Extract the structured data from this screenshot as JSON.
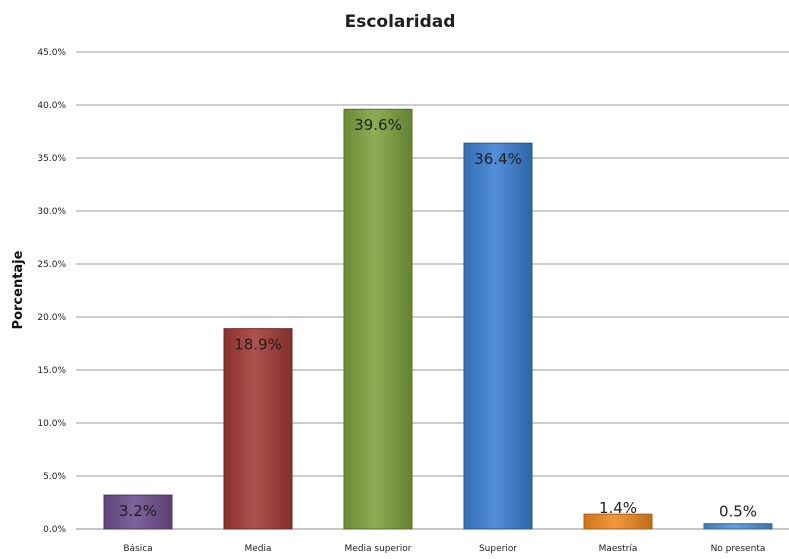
{
  "chart_data": {
    "type": "bar",
    "title": "Escolaridad",
    "xlabel": "",
    "ylabel": "Porcentaje",
    "ylim": [
      0,
      45
    ],
    "ytick_step": 5,
    "ytick_labels": [
      "0.0%",
      "5.0%",
      "10.0%",
      "15.0%",
      "20.0%",
      "25.0%",
      "30.0%",
      "35.0%",
      "40.0%",
      "45.0%"
    ],
    "grid": true,
    "legend": "none",
    "categories": [
      "Básica",
      "Media",
      "Media superior",
      "Superior",
      "Maestría",
      "No presenta"
    ],
    "values": [
      3.2,
      18.9,
      39.6,
      36.4,
      1.4,
      0.5
    ],
    "data_labels": [
      "3.2%",
      "18.9%",
      "39.6%",
      "36.4%",
      "1.4%",
      "0.5%"
    ],
    "colors": [
      "#6f4f8f",
      "#a33b36",
      "#7da23e",
      "#3b7fd4",
      "#f08a21",
      "#4f93da"
    ]
  }
}
